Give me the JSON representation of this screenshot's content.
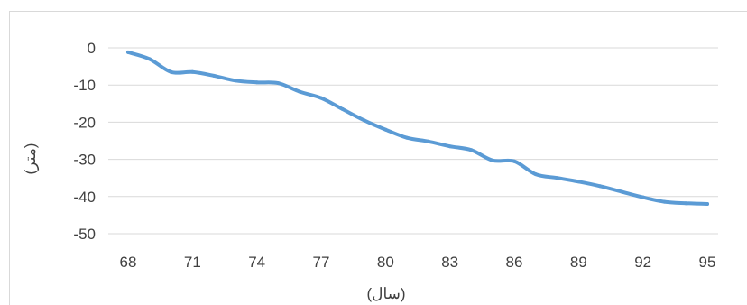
{
  "chart_data": {
    "type": "line",
    "title": "",
    "xlabel": "(سال)",
    "ylabel": "(متر)",
    "x_ticks": [
      "68",
      "71",
      "74",
      "77",
      "80",
      "83",
      "86",
      "89",
      "92",
      "95"
    ],
    "y_ticks": [
      "0",
      "-10",
      "-20",
      "-30",
      "-40",
      "-50"
    ],
    "xlim": [
      68,
      95
    ],
    "ylim": [
      -50,
      0
    ],
    "grid": "horizontal",
    "legend": "none",
    "series": [
      {
        "x": [
          68,
          69,
          70,
          71,
          72,
          73,
          74,
          75,
          76,
          77,
          78,
          79,
          80,
          81,
          82,
          83,
          84,
          85,
          86,
          87,
          88,
          89,
          90,
          91,
          92,
          93,
          94,
          95
        ],
        "y": [
          -1.2,
          -3,
          -6.5,
          -6.5,
          -7.5,
          -8.8,
          -9.3,
          -9.5,
          -11.8,
          -13.5,
          -16.5,
          -19.5,
          -22,
          -24.2,
          -25.2,
          -26.5,
          -27.5,
          -30.3,
          -30.5,
          -34,
          -35,
          -36,
          -37.2,
          -38.7,
          -40.2,
          -41.4,
          -41.8,
          -42
        ]
      }
    ],
    "colors": {
      "line": "#5b9bd5",
      "grid": "#d9d9d9",
      "frame": "#d9d9d9",
      "text": "#404040"
    }
  }
}
